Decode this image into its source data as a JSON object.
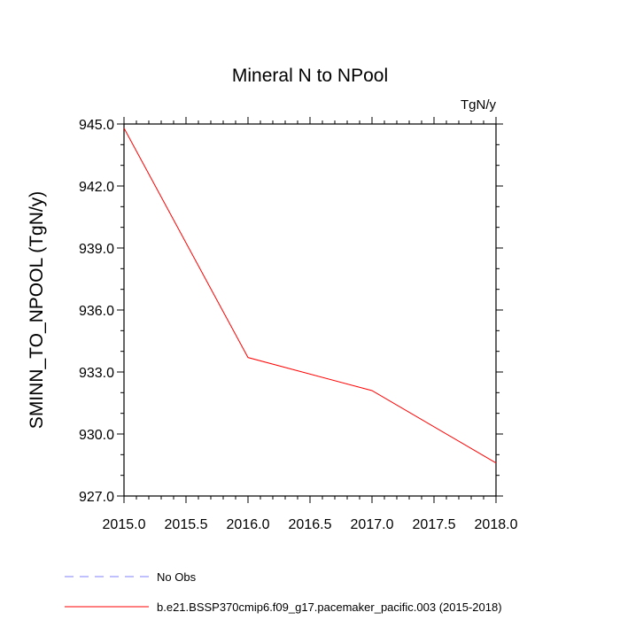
{
  "chart_data": {
    "type": "line",
    "title": "Mineral N to NPool",
    "units": "TgN/y",
    "ylabel": "SMINN_TO_NPOOL  (TgN/y)",
    "xlabel": "",
    "xlim": [
      2015.0,
      2018.0
    ],
    "ylim": [
      927.0,
      945.0
    ],
    "x_ticks": [
      "2015.0",
      "2015.5",
      "2016.0",
      "2016.5",
      "2017.0",
      "2017.5",
      "2018.0"
    ],
    "y_ticks": [
      "927.0",
      "930.0",
      "933.0",
      "936.0",
      "939.0",
      "942.0",
      "945.0"
    ],
    "grid": false,
    "series": [
      {
        "name": "No Obs",
        "color": "#8080ff",
        "dash": true,
        "x": [],
        "y": []
      },
      {
        "name": "b.e21.BSSP370cmip6.f09_g17.pacemaker_pacific.003 (2015-2018)",
        "color": "#ff0000",
        "dash": false,
        "x": [
          2015.0,
          2016.0,
          2017.0,
          2018.0
        ],
        "y": [
          944.8,
          933.7,
          932.1,
          928.6
        ]
      }
    ],
    "legend_position": "bottom"
  }
}
